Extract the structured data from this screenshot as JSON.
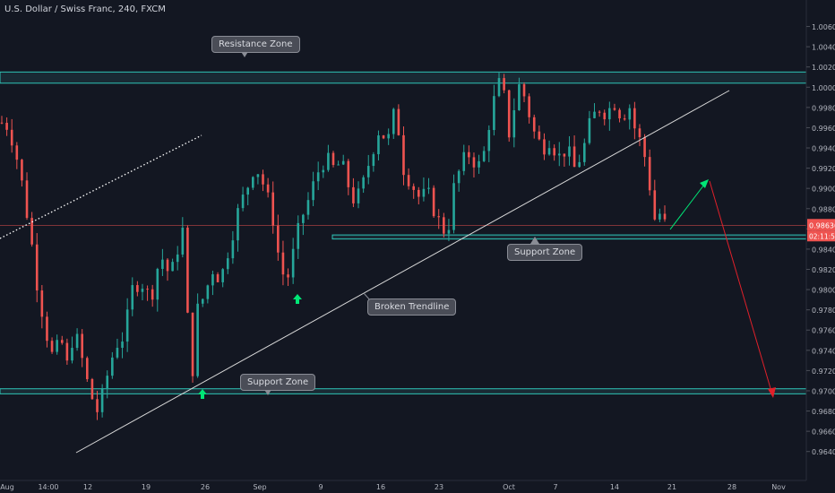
{
  "header": {
    "title": "U.S. Dollar / Swiss Franc, 240, FXCM"
  },
  "annotations": {
    "resistance_zone": "Resistance Zone",
    "support_zone_upper": "Support Zone",
    "support_zone_lower": "Support Zone",
    "broken_trendline": "Broken Trendline"
  },
  "colors": {
    "background": "#131722",
    "up_candle": "#26a69a",
    "down_candle": "#ef5350",
    "zone_line": "#2ec4b6",
    "trendline": "#d9d9d9",
    "green_arrow": "#00e676",
    "red_arrow": "#e0202a",
    "price_line": "#ef5350",
    "label_text": "#b2b5be"
  },
  "chart_data": {
    "type": "candlestick",
    "title": "U.S. Dollar / Swiss Franc, 240, FXCM",
    "x_tick_labels": [
      "Aug",
      "14:00",
      "12",
      "19",
      "26",
      "Sep",
      "9",
      "16",
      "23",
      "Oct",
      "7",
      "14",
      "21",
      "28",
      "Nov"
    ],
    "y_tick_labels": [
      "1.00600",
      "1.00400",
      "1.00200",
      "1.00000",
      "0.99800",
      "0.99600",
      "0.99400",
      "0.99200",
      "0.99000",
      "0.98800",
      "0.98600",
      "0.98400",
      "0.98200",
      "0.98000",
      "0.97800",
      "0.97600",
      "0.97400",
      "0.97200",
      "0.97000",
      "0.96800",
      "0.96600",
      "0.96400"
    ],
    "ylim": [
      0.963,
      1.0072
    ],
    "current_price": "0.98636",
    "countdown": "02:11:56",
    "zones": [
      {
        "name": "Resistance Zone",
        "low": 1.0004,
        "high": 1.0015
      },
      {
        "name": "Support Zone",
        "low": 0.985,
        "high": 0.9854
      },
      {
        "name": "Support Zone",
        "low": 0.9697,
        "high": 0.9702
      }
    ],
    "price_path": [
      [
        0.4,
        0.9965
      ],
      [
        1.2,
        0.9945
      ],
      [
        2.0,
        0.9905
      ],
      [
        2.8,
        0.9858
      ],
      [
        3.6,
        0.98
      ],
      [
        4.6,
        0.975
      ],
      [
        5.2,
        0.9728
      ],
      [
        5.8,
        0.9755
      ],
      [
        6.5,
        0.9725
      ],
      [
        7.2,
        0.976
      ],
      [
        7.9,
        0.9735
      ],
      [
        8.7,
        0.97
      ],
      [
        9.6,
        0.9678
      ],
      [
        10.5,
        0.9715
      ],
      [
        11.3,
        0.9745
      ],
      [
        12.2,
        0.9755
      ],
      [
        13.0,
        0.98
      ],
      [
        13.8,
        0.981
      ],
      [
        14.8,
        0.979
      ],
      [
        15.8,
        0.9835
      ],
      [
        16.8,
        0.9812
      ],
      [
        17.6,
        0.9845
      ],
      [
        18.2,
        0.9865
      ],
      [
        18.6,
        0.974
      ],
      [
        19.0,
        0.9722
      ],
      [
        19.4,
        0.9778
      ],
      [
        20.2,
        0.9795
      ],
      [
        21.0,
        0.982
      ],
      [
        21.8,
        0.981
      ],
      [
        22.8,
        0.985
      ],
      [
        23.6,
        0.988
      ],
      [
        24.4,
        0.99
      ],
      [
        25.2,
        0.9925
      ],
      [
        26.2,
        0.99
      ],
      [
        27.0,
        0.987
      ],
      [
        27.6,
        0.983
      ],
      [
        28.3,
        0.9805
      ],
      [
        29.0,
        0.9835
      ],
      [
        29.8,
        0.987
      ],
      [
        30.6,
        0.989
      ],
      [
        31.4,
        0.9915
      ],
      [
        32.2,
        0.993
      ],
      [
        33.0,
        0.992
      ],
      [
        33.8,
        0.9925
      ],
      [
        34.6,
        0.99
      ],
      [
        35.2,
        0.9885
      ],
      [
        36.0,
        0.9905
      ],
      [
        36.8,
        0.9935
      ],
      [
        37.6,
        0.996
      ],
      [
        38.4,
        0.9945
      ],
      [
        39.2,
        0.998
      ],
      [
        40.0,
        0.992
      ],
      [
        40.8,
        0.9905
      ],
      [
        41.6,
        0.989
      ],
      [
        42.4,
        0.9895
      ],
      [
        43.2,
        0.9875
      ],
      [
        43.8,
        0.986
      ],
      [
        44.4,
        0.9858
      ],
      [
        45.0,
        0.99
      ],
      [
        45.8,
        0.9925
      ],
      [
        46.6,
        0.9935
      ],
      [
        47.4,
        0.992
      ],
      [
        48.0,
        0.9935
      ],
      [
        48.6,
        0.997
      ],
      [
        49.2,
        0.9995
      ],
      [
        49.8,
        1.001
      ],
      [
        50.4,
        0.995
      ],
      [
        51.0,
        0.998
      ],
      [
        51.6,
        1.0005
      ],
      [
        52.2,
        0.9985
      ],
      [
        53.0,
        0.9955
      ],
      [
        53.8,
        0.994
      ],
      [
        54.6,
        0.995
      ],
      [
        55.4,
        0.993
      ],
      [
        56.2,
        0.994
      ],
      [
        57.0,
        0.992
      ],
      [
        57.8,
        0.9935
      ],
      [
        58.6,
        0.9965
      ],
      [
        59.4,
        0.998
      ],
      [
        60.2,
        0.9975
      ],
      [
        61.0,
        0.9985
      ],
      [
        61.8,
        0.997
      ],
      [
        62.4,
        0.9985
      ],
      [
        63.0,
        0.996
      ],
      [
        63.6,
        0.9945
      ],
      [
        64.2,
        0.9925
      ],
      [
        64.6,
        0.9895
      ],
      [
        65.0,
        0.987
      ],
      [
        65.4,
        0.9878
      ],
      [
        65.8,
        0.9866
      ],
      [
        66.1,
        0.98636
      ]
    ]
  }
}
